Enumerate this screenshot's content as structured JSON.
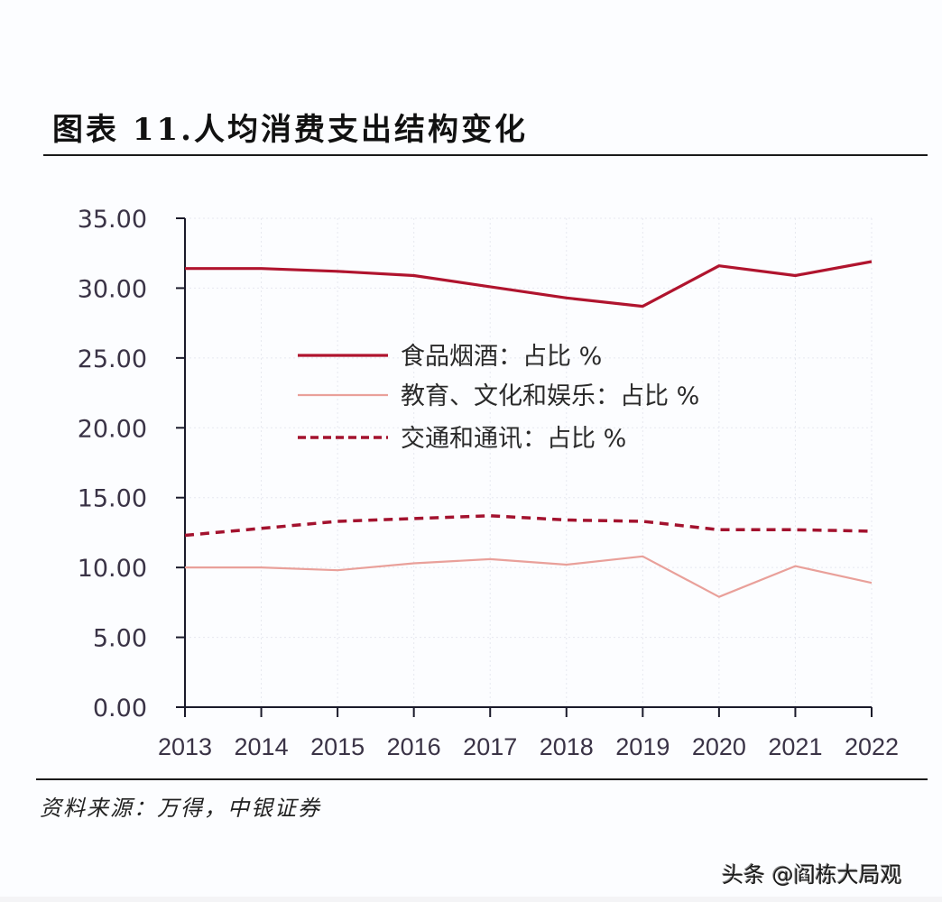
{
  "header": {
    "title": "图表 11.人均消费支出结构变化"
  },
  "footer": {
    "source": "资料来源：万得，中银证券",
    "watermark": "头条 @阎栋大局观"
  },
  "colors": {
    "food": "#b0142e",
    "education": "#e9a09a",
    "transport": "#a3122e",
    "axis": "#1a1a2a",
    "grid": "#e6e8f0"
  },
  "chart_data": {
    "type": "line",
    "title": "图表 11.人均消费支出结构变化",
    "xlabel": "",
    "ylabel": "",
    "x": [
      "2013",
      "2014",
      "2015",
      "2016",
      "2017",
      "2018",
      "2019",
      "2020",
      "2021",
      "2022"
    ],
    "ylim": [
      0,
      35
    ],
    "yticks": [
      "0.00",
      "5.00",
      "10.00",
      "15.00",
      "20.00",
      "25.00",
      "30.00",
      "35.00"
    ],
    "grid": true,
    "legend_position": "inside-upper-center",
    "series": [
      {
        "name": "食品烟酒：占比 %",
        "style": "solid-thick",
        "color": "#b0142e",
        "values": [
          31.4,
          31.4,
          31.2,
          30.9,
          30.1,
          29.3,
          28.7,
          31.6,
          30.9,
          31.9
        ]
      },
      {
        "name": "教育、文化和娱乐：占比 %",
        "style": "solid-thin",
        "color": "#e9a09a",
        "values": [
          10.0,
          10.0,
          9.8,
          10.3,
          10.6,
          10.2,
          10.8,
          7.9,
          10.1,
          8.9
        ]
      },
      {
        "name": "交通和通讯：占比 %",
        "style": "dashed",
        "color": "#a3122e",
        "values": [
          12.3,
          12.8,
          13.3,
          13.5,
          13.7,
          13.4,
          13.3,
          12.7,
          12.7,
          12.6
        ]
      }
    ]
  }
}
